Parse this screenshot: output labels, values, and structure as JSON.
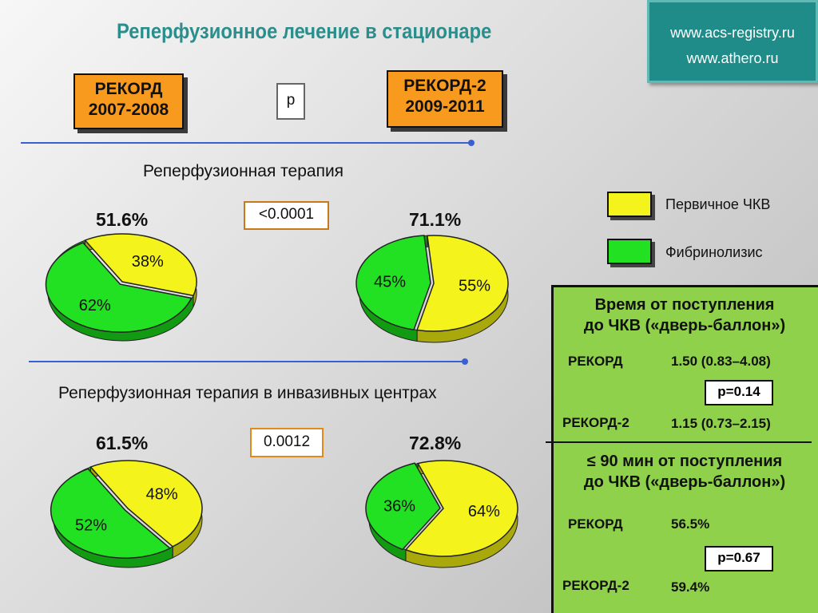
{
  "title": "Реперфузионное лечение в стационаре",
  "urls": [
    "www.acs-registry.ru",
    "www.athero.ru"
  ],
  "cohorts": {
    "first": {
      "name": "РЕКОРД",
      "years": "2007-2008"
    },
    "second": {
      "name": "РЕКОРД-2",
      "years": "2009-2011"
    }
  },
  "p_header": "p",
  "colors": {
    "pci": "#f4f41c",
    "fibrinolysis": "#22e022"
  },
  "legend": {
    "pci": "Первичное ЧКВ",
    "fibrinolysis": "Фибринолизис"
  },
  "chart_data": [
    {
      "type": "pie",
      "section": "Реперфузионная терапия",
      "p_value": "<0.0001",
      "cohort": "РЕКОРД",
      "total": "51.6%",
      "slices": [
        {
          "name": "Первичное ЧКВ",
          "value": 38,
          "label": "38%"
        },
        {
          "name": "Фибринолизис",
          "value": 62,
          "label": "62%"
        }
      ]
    },
    {
      "type": "pie",
      "section": "Реперфузионная терапия",
      "cohort": "РЕКОРД-2",
      "total": "71.1%",
      "slices": [
        {
          "name": "Первичное ЧКВ",
          "value": 55,
          "label": "55%"
        },
        {
          "name": "Фибринолизис",
          "value": 45,
          "label": "45%"
        }
      ]
    },
    {
      "type": "pie",
      "section": "Реперфузионная терапия в инвазивных центрах",
      "p_value": "0.0012",
      "cohort": "РЕКОРД",
      "total": "61.5%",
      "slices": [
        {
          "name": "Первичное ЧКВ",
          "value": 48,
          "label": "48%"
        },
        {
          "name": "Фибринолизис",
          "value": 52,
          "label": "52%"
        }
      ]
    },
    {
      "type": "pie",
      "section": "Реперфузионная терапия в инвазивных центрах",
      "cohort": "РЕКОРД-2",
      "total": "72.8%",
      "slices": [
        {
          "name": "Первичное ЧКВ",
          "value": 64,
          "label": "64%"
        },
        {
          "name": "Фибринолизис",
          "value": 36,
          "label": "36%"
        }
      ]
    }
  ],
  "stats": {
    "door_to_balloon": {
      "heading_line1": "Время от поступления",
      "heading_line2": "до ЧКВ («дверь-баллон»)",
      "rows": [
        {
          "name": "РЕКОРД",
          "value": "1.50 (0.83–4.08)"
        },
        {
          "name": "РЕКОРД-2",
          "value": "1.15 (0.73–2.15)"
        }
      ],
      "p": "p=0.14"
    },
    "within_90": {
      "heading_line1": "≤ 90 мин от поступления",
      "heading_line2": "до ЧКВ («дверь-баллон»)",
      "rows": [
        {
          "name": "РЕКОРД",
          "value": "56.5%"
        },
        {
          "name": "РЕКОРД-2",
          "value": "59.4%"
        }
      ],
      "p": "p=0.67"
    }
  }
}
